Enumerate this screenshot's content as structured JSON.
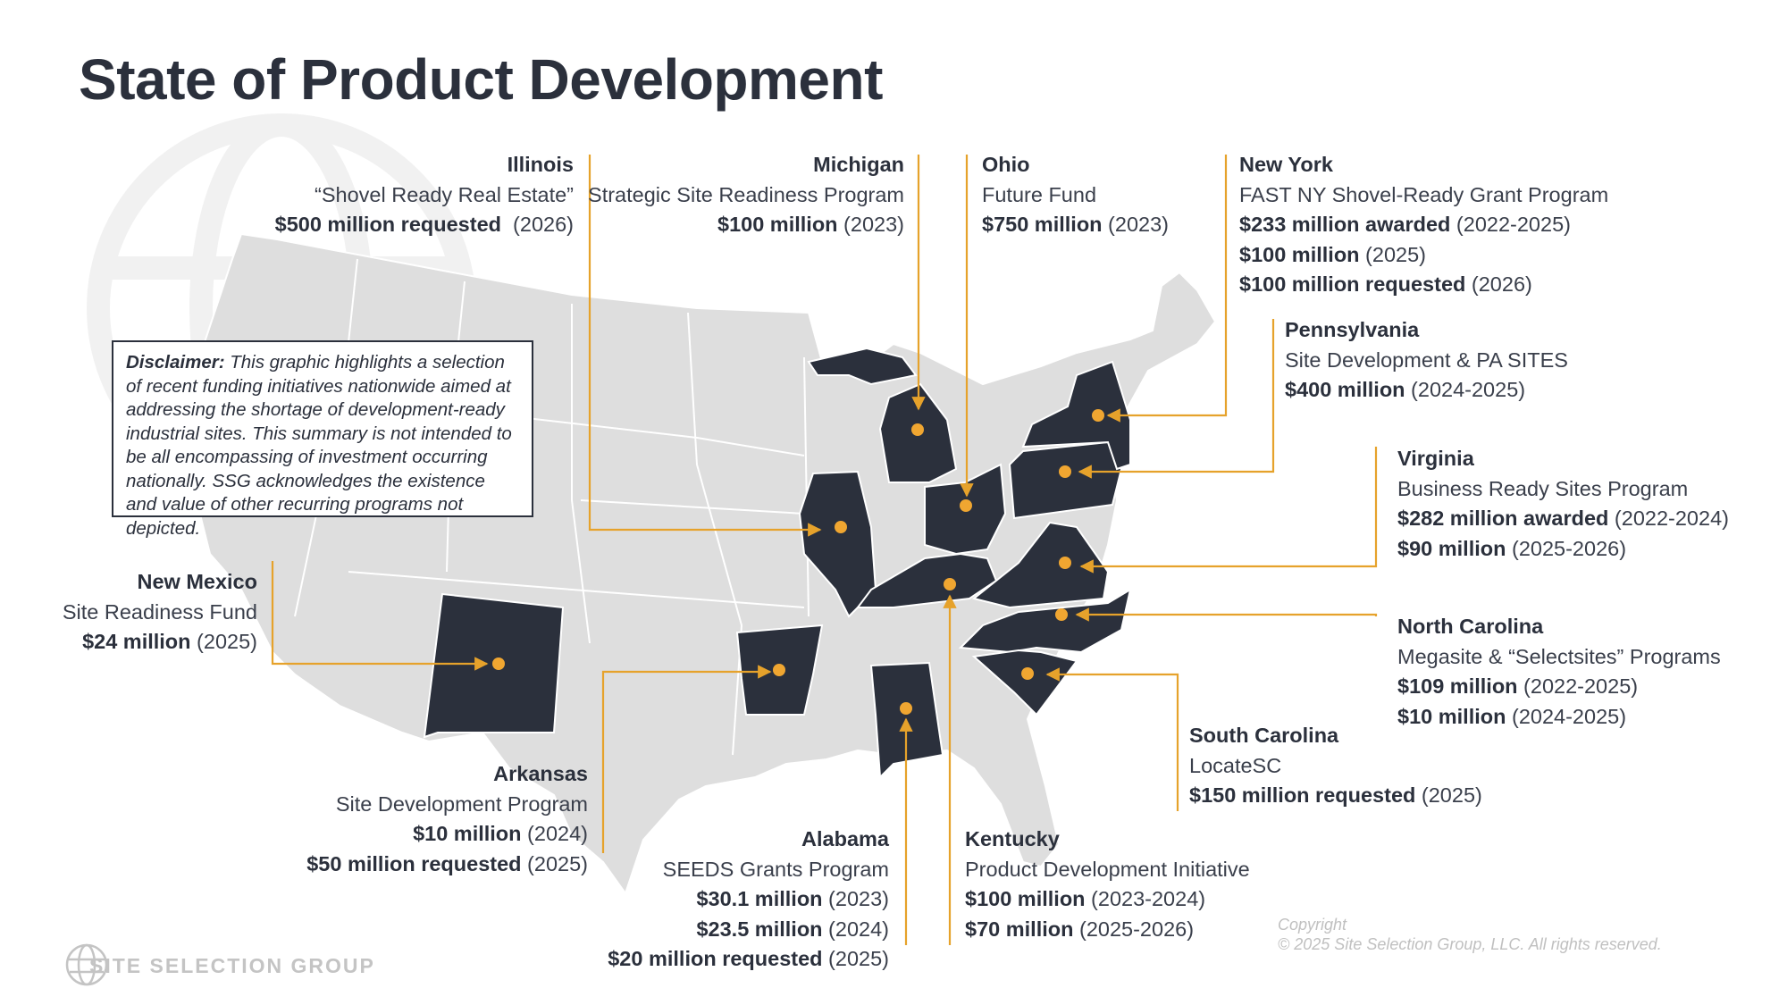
{
  "title": "State of Product Development",
  "colors": {
    "highlight_state": "#2b303c",
    "other_states": "#dedede",
    "state_border": "#ffffff",
    "leader_line": "#e6a22b",
    "marker": "#f0a631",
    "text": "#2b303c",
    "watermark": "#c4c4c4"
  },
  "disclaimer": {
    "label": "Disclaimer:",
    "text": " This graphic highlights a selection of recent funding initiatives nationwide aimed at addressing the shortage of development-ready industrial sites. This summary is not intended to be all encompassing of investment occurring nationally.  SSG acknowledges the existence and value of other recurring programs not depicted."
  },
  "highlighted_states": [
    "Illinois",
    "Michigan",
    "Ohio",
    "New York",
    "Pennsylvania",
    "Virginia",
    "North Carolina",
    "South Carolina",
    "Kentucky",
    "Alabama",
    "Arkansas",
    "New Mexico"
  ],
  "callouts": {
    "illinois": {
      "state": "Illinois",
      "program": "“Shovel Ready Real Estate”",
      "funds": [
        {
          "amount": "$500 million requested",
          "period": "  (2026)"
        }
      ]
    },
    "michigan": {
      "state": "Michigan",
      "program": "Strategic Site Readiness Program",
      "funds": [
        {
          "amount": "$100 million",
          "period": " (2023)"
        }
      ]
    },
    "ohio": {
      "state": "Ohio",
      "program": "Future Fund",
      "funds": [
        {
          "amount": "$750 million",
          "period": " (2023)"
        }
      ]
    },
    "newyork": {
      "state": "New York",
      "program": "FAST NY Shovel-Ready Grant Program",
      "funds": [
        {
          "amount": "$233 million awarded",
          "period": " (2022-2025)"
        },
        {
          "amount": "$100 million",
          "period": " (2025)"
        },
        {
          "amount": "$100 million requested",
          "period": " (2026)"
        }
      ]
    },
    "pennsylvania": {
      "state": "Pennsylvania",
      "program": "Site Development & PA SITES",
      "funds": [
        {
          "amount": "$400 million",
          "period": " (2024-2025)"
        }
      ]
    },
    "virginia": {
      "state": "Virginia",
      "program": "Business Ready Sites Program",
      "funds": [
        {
          "amount": "$282 million awarded",
          "period": " (2022-2024)"
        },
        {
          "amount": "$90 million",
          "period": " (2025-2026)"
        }
      ]
    },
    "northcarolina": {
      "state": "North Carolina",
      "program": "Megasite & “Selectsites” Programs",
      "funds": [
        {
          "amount": "$109 million",
          "period": " (2022-2025)"
        },
        {
          "amount": "$10 million",
          "period": " (2024-2025)"
        }
      ]
    },
    "southcarolina": {
      "state": "South Carolina",
      "program": "LocateSC",
      "funds": [
        {
          "amount": "$150 million requested",
          "period": " (2025)"
        }
      ]
    },
    "kentucky": {
      "state": "Kentucky",
      "program": "Product Development Initiative",
      "funds": [
        {
          "amount": "$100 million",
          "period": " (2023-2024)"
        },
        {
          "amount": "$70 million",
          "period": " (2025-2026)"
        }
      ]
    },
    "alabama": {
      "state": "Alabama",
      "program": "SEEDS Grants Program",
      "funds": [
        {
          "amount": "$30.1 million",
          "period": " (2023)"
        },
        {
          "amount": "$23.5 million",
          "period": " (2024)"
        },
        {
          "amount": "$20 million requested",
          "period": " (2025)"
        }
      ]
    },
    "arkansas": {
      "state": "Arkansas",
      "program": "Site Development Program",
      "funds": [
        {
          "amount": "$10 million",
          "period": " (2024)"
        },
        {
          "amount": "$50 million requested",
          "period": " (2025)"
        }
      ]
    },
    "newmexico": {
      "state": "New Mexico",
      "program": "Site Readiness Fund",
      "funds": [
        {
          "amount": "$24 million",
          "period": " (2025)"
        }
      ]
    }
  },
  "logo": {
    "text": "SITE SELECTION GROUP",
    "icon": "globe-icon"
  },
  "copyright": {
    "line1": "Copyright",
    "line2": "© 2025 Site Selection Group, LLC.  All rights reserved."
  }
}
